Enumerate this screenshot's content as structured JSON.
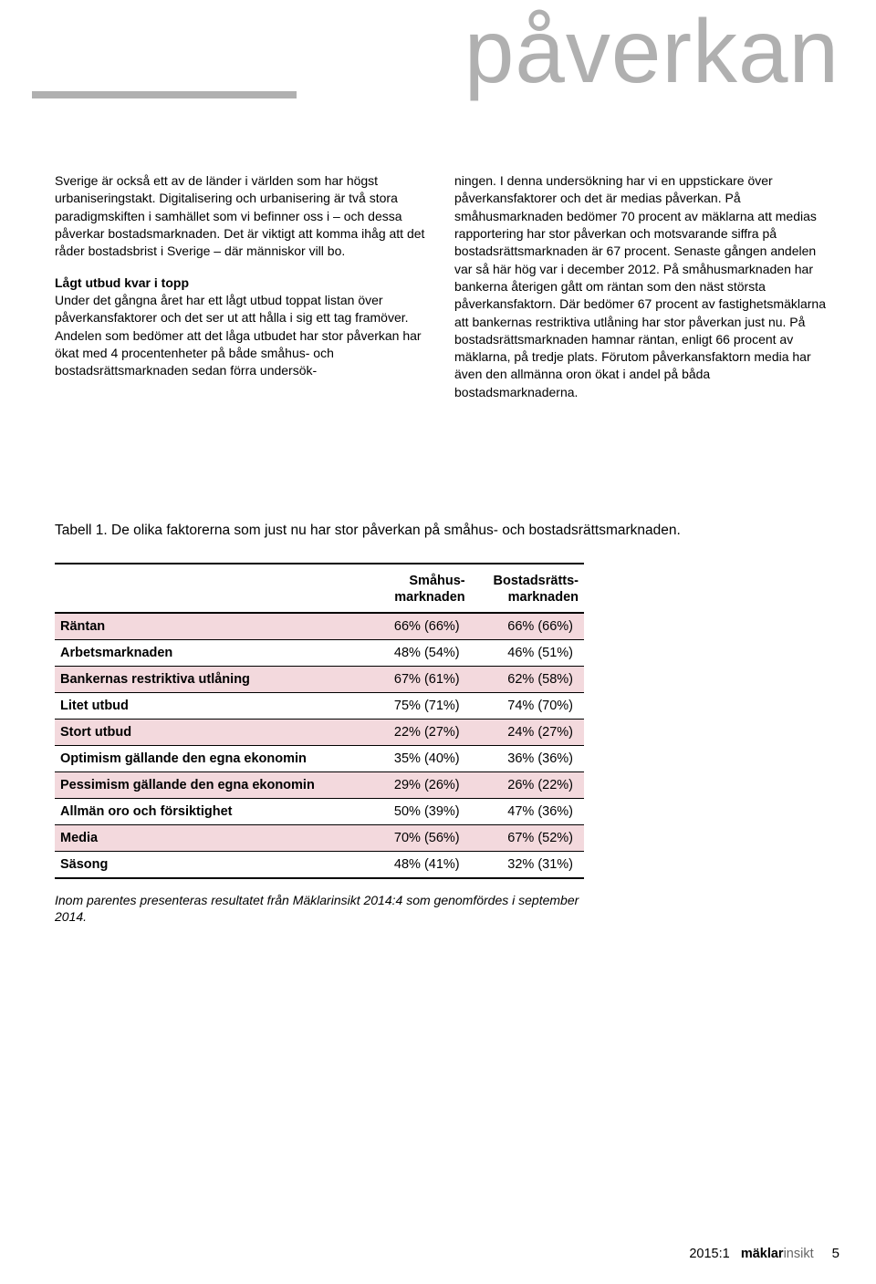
{
  "header": {
    "title": "påverkan",
    "rule_color": "#b0b0b0"
  },
  "columns": {
    "left": {
      "p1": "Sverige är också ett av de länder i världen som har högst urbaniseringstakt. Digitalisering och urbanisering är två stora paradigmskiften i samhället som vi befinner oss i – och dessa påverkar bostadsmarknaden. Det är viktigt att komma ihåg att det råder bostadsbrist i Sverige – där människor vill bo.",
      "subhead": "Lågt utbud kvar i topp",
      "p2": "Under det gångna året har ett lågt utbud toppat listan över påverkansfaktorer och det ser ut att hålla i sig ett tag framöver. Andelen som bedömer att det låga utbudet har stor påverkan har ökat med 4 procentenheter på både småhus- och bostadsrättsmarknaden sedan förra undersök-"
    },
    "right": {
      "p1": "ningen. I denna undersökning har vi en uppstickare över påverkansfaktorer och det är medias påverkan. På småhusmarknaden bedömer 70 procent av mäklarna att medias rapportering har stor påverkan och motsvarande siffra på bostadsrättsmarknaden är 67 procent. Senaste gången andelen var så här hög var i december 2012. På småhusmarknaden har bankerna återigen gått om räntan som den näst största påverkansfaktorn. Där bedömer 67 procent av fastighetsmäklarna att bankernas restriktiva utlåning har stor påverkan just nu. På bostadsrättsmarknaden hamnar räntan, enligt 66 procent av mäklarna, på tredje plats. Förutom påverkansfaktorn media har även den allmänna oron ökat i andel på båda bostadsmarknaderna."
    }
  },
  "table": {
    "caption": "Tabell 1. De olika faktorerna som just nu har stor påverkan på småhus- och bostadsrättsmarknaden.",
    "head": {
      "c1": "",
      "c2a": "Småhus-",
      "c2b": "marknaden",
      "c3a": "Bostadsrätts-",
      "c3b": "marknaden"
    },
    "rows": [
      {
        "label": "Räntan",
        "a": "66% (66%)",
        "b": "66% (66%)",
        "shade": true
      },
      {
        "label": "Arbetsmarknaden",
        "a": "48% (54%)",
        "b": "46% (51%)",
        "shade": false
      },
      {
        "label": "Bankernas restriktiva utlåning",
        "a": "67% (61%)",
        "b": "62% (58%)",
        "shade": true
      },
      {
        "label": "Litet utbud",
        "a": "75% (71%)",
        "b": "74% (70%)",
        "shade": false
      },
      {
        "label": "Stort utbud",
        "a": "22% (27%)",
        "b": "24% (27%)",
        "shade": true
      },
      {
        "label": "Optimism gällande den egna ekonomin",
        "a": "35% (40%)",
        "b": "36% (36%)",
        "shade": false
      },
      {
        "label": "Pessimism gällande den egna ekonomin",
        "a": "29% (26%)",
        "b": "26% (22%)",
        "shade": true
      },
      {
        "label": "Allmän oro och försiktighet",
        "a": "50% (39%)",
        "b": "47% (36%)",
        "shade": false
      },
      {
        "label": "Media",
        "a": "70% (56%)",
        "b": "67% (52%)",
        "shade": true
      },
      {
        "label": "Säsong",
        "a": "48% (41%)",
        "b": "32% (31%)",
        "shade": false
      }
    ],
    "note": "Inom parentes presenteras resultatet från Mäklarinsikt 2014:4 som genomfördes i september 2014.",
    "shade_color": "#f3d9dd"
  },
  "footer": {
    "issue": "2015:1",
    "brand1": "mäklar",
    "brand2": "insikt",
    "page": "5"
  }
}
